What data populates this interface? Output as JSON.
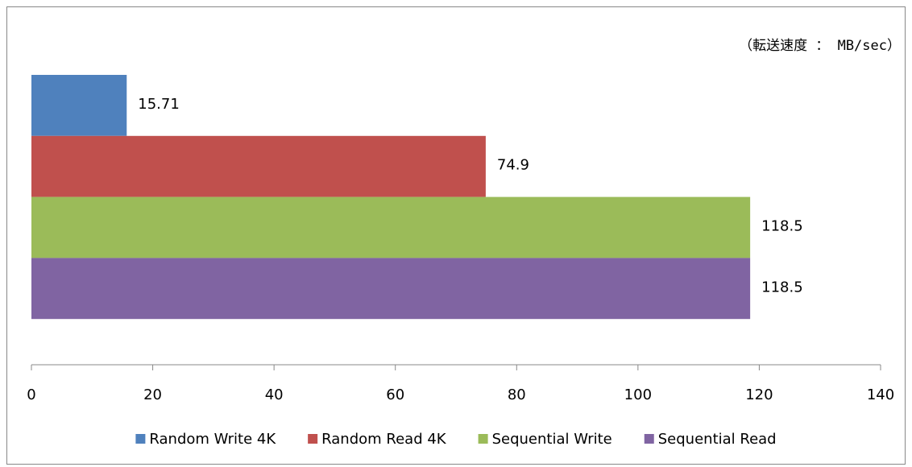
{
  "chart_data": {
    "type": "bar",
    "orientation": "horizontal",
    "annotation": "（転送速度 ： MB/sec）",
    "categories": [
      null
    ],
    "series": [
      {
        "name": "Random Write 4K",
        "color": "#4f81bd",
        "values": [
          15.71
        ]
      },
      {
        "name": "Random Read 4K",
        "color": "#c0504d",
        "values": [
          74.9
        ]
      },
      {
        "name": "Sequential Write",
        "color": "#9bbb59",
        "values": [
          118.5
        ]
      },
      {
        "name": "Sequential Read",
        "color": "#8064a2",
        "values": [
          118.5
        ]
      }
    ],
    "xlim": [
      0,
      140
    ],
    "xticks": [
      0,
      20,
      40,
      60,
      80,
      100,
      120,
      140
    ],
    "grid": false,
    "legend": "bottom"
  }
}
